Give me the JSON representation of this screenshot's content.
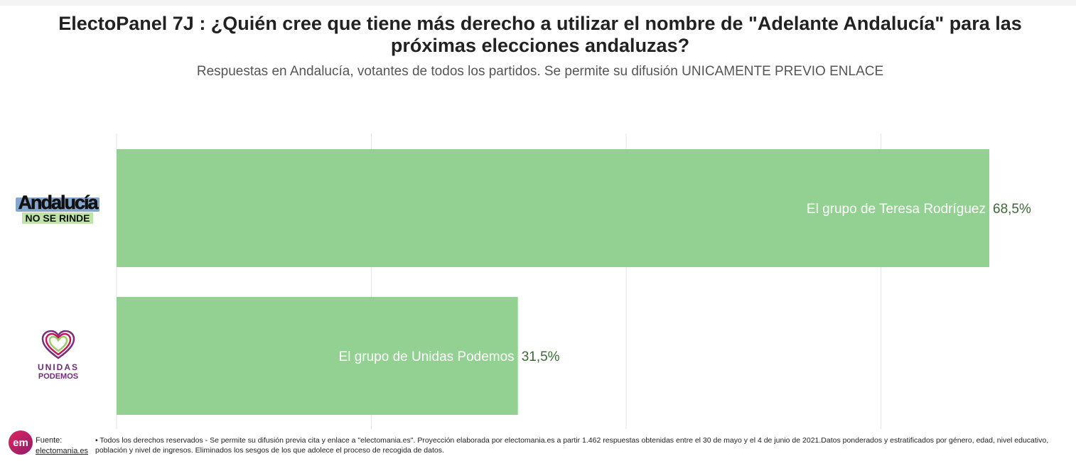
{
  "title": "ElectoPanel 7J : ¿Quién cree que tiene más derecho a utilizar el nombre de \"Adelante Andalucía\" para las próximas elecciones andaluzas?",
  "subtitle": "Respuestas en Andalucía, votantes de todos los partidos. Se permite su difusión UNICAMENTE PREVIO ENLACE",
  "logos": {
    "andalucia_top": "Andalucía",
    "andalucia_bottom": "NO SE RINDE",
    "unidas": "UNIDAS",
    "podemos": "PODEMOS"
  },
  "footer": {
    "badge": "em",
    "source_label": "Fuente:",
    "source_link": "electomania.es",
    "notes": "• Todos los derechos reservados - Se permite su difusión previa cita y enlace a \"electomania.es\". Proyección elaborada por electomania.es a partir 1.462 respuestas obtenidas entre el 30 de mayo y el 4 de junio de 2021.Datos ponderados y estratificados por género, edad, nivel educativo, población y nivel de ingresos. Eliminados los sesgos de los que adolece el proceso de recogida de datos."
  },
  "colors": {
    "bar": "#93d192",
    "value_label": "#3a6b34",
    "grid": "#e3e3e3"
  },
  "chart_data": {
    "type": "bar",
    "orientation": "horizontal",
    "categories": [
      "El grupo de Teresa Rodríguez",
      "El grupo de Unidas Podemos"
    ],
    "values": [
      68.5,
      31.5
    ],
    "value_labels": [
      "68,5%",
      "31,5%"
    ],
    "xlim": [
      0,
      75
    ],
    "grid": true,
    "legend": "none"
  }
}
